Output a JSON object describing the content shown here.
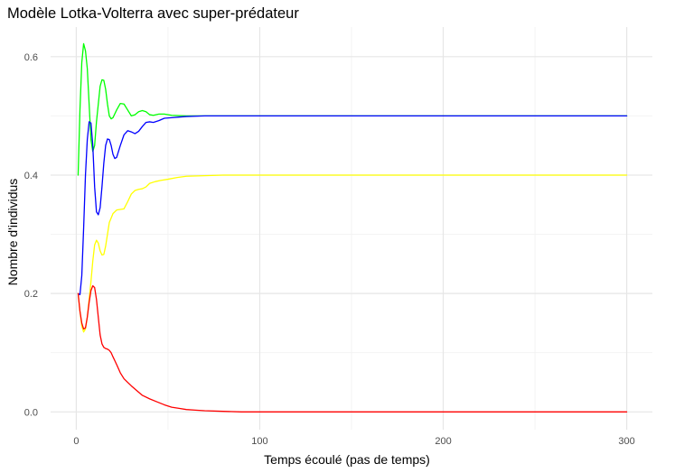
{
  "chart_data": {
    "type": "line",
    "title": "Modèle Lotka-Volterra avec super-prédateur",
    "xlabel": "Temps écoulé (pas de temps)",
    "ylabel": "Nombre d'individus",
    "xlim": [
      -14,
      314
    ],
    "ylim": [
      -0.03,
      0.65
    ],
    "xticks": [
      0,
      100,
      200,
      300
    ],
    "xtick_labels": [
      "0",
      "100",
      "200",
      "300"
    ],
    "x_minor_ticks": [
      50,
      150,
      250
    ],
    "yticks": [
      0.0,
      0.2,
      0.4,
      0.6
    ],
    "ytick_labels": [
      "0.0",
      "0.2",
      "0.4",
      "0.6"
    ],
    "y_minor_ticks": [
      0.1,
      0.3,
      0.5
    ],
    "grid": true,
    "legend": "none",
    "series": [
      {
        "color": "#00ff00",
        "points": [
          [
            1,
            0.4
          ],
          [
            2,
            0.51
          ],
          [
            3,
            0.59
          ],
          [
            4,
            0.622
          ],
          [
            5,
            0.61
          ],
          [
            6,
            0.58
          ],
          [
            7,
            0.52
          ],
          [
            8,
            0.46
          ],
          [
            9,
            0.44
          ],
          [
            10,
            0.45
          ],
          [
            11,
            0.49
          ],
          [
            12,
            0.52
          ],
          [
            13,
            0.55
          ],
          [
            14,
            0.561
          ],
          [
            15,
            0.56
          ],
          [
            16,
            0.545
          ],
          [
            17,
            0.52
          ],
          [
            18,
            0.5
          ],
          [
            19,
            0.495
          ],
          [
            20,
            0.497
          ],
          [
            22,
            0.51
          ],
          [
            24,
            0.521
          ],
          [
            26,
            0.52
          ],
          [
            28,
            0.51
          ],
          [
            30,
            0.5
          ],
          [
            32,
            0.502
          ],
          [
            34,
            0.507
          ],
          [
            36,
            0.509
          ],
          [
            38,
            0.507
          ],
          [
            40,
            0.502
          ],
          [
            42,
            0.501
          ],
          [
            45,
            0.503
          ],
          [
            48,
            0.503
          ],
          [
            52,
            0.501
          ],
          [
            60,
            0.5
          ],
          [
            80,
            0.5
          ],
          [
            100,
            0.5
          ],
          [
            150,
            0.5
          ],
          [
            200,
            0.5
          ],
          [
            250,
            0.5
          ],
          [
            300,
            0.5
          ]
        ]
      },
      {
        "color": "#0000ff",
        "points": [
          [
            1,
            0.2
          ],
          [
            2,
            0.198
          ],
          [
            3,
            0.23
          ],
          [
            4,
            0.31
          ],
          [
            5,
            0.4
          ],
          [
            6,
            0.46
          ],
          [
            7,
            0.49
          ],
          [
            8,
            0.488
          ],
          [
            9,
            0.45
          ],
          [
            10,
            0.38
          ],
          [
            11,
            0.338
          ],
          [
            12,
            0.333
          ],
          [
            13,
            0.345
          ],
          [
            14,
            0.38
          ],
          [
            15,
            0.42
          ],
          [
            16,
            0.45
          ],
          [
            17,
            0.461
          ],
          [
            18,
            0.46
          ],
          [
            19,
            0.45
          ],
          [
            20,
            0.435
          ],
          [
            21,
            0.428
          ],
          [
            22,
            0.43
          ],
          [
            24,
            0.45
          ],
          [
            26,
            0.468
          ],
          [
            28,
            0.475
          ],
          [
            30,
            0.473
          ],
          [
            32,
            0.47
          ],
          [
            34,
            0.474
          ],
          [
            36,
            0.482
          ],
          [
            38,
            0.489
          ],
          [
            40,
            0.49
          ],
          [
            42,
            0.489
          ],
          [
            45,
            0.492
          ],
          [
            48,
            0.496
          ],
          [
            52,
            0.497
          ],
          [
            56,
            0.498
          ],
          [
            60,
            0.499
          ],
          [
            70,
            0.5
          ],
          [
            80,
            0.5
          ],
          [
            100,
            0.5
          ],
          [
            150,
            0.5
          ],
          [
            200,
            0.5
          ],
          [
            250,
            0.5
          ],
          [
            300,
            0.5
          ]
        ]
      },
      {
        "color": "#ffff00",
        "points": [
          [
            1,
            0.2
          ],
          [
            2,
            0.17
          ],
          [
            3,
            0.145
          ],
          [
            4,
            0.135
          ],
          [
            5,
            0.14
          ],
          [
            6,
            0.16
          ],
          [
            7,
            0.19
          ],
          [
            8,
            0.22
          ],
          [
            9,
            0.255
          ],
          [
            10,
            0.282
          ],
          [
            11,
            0.29
          ],
          [
            12,
            0.285
          ],
          [
            13,
            0.272
          ],
          [
            14,
            0.265
          ],
          [
            15,
            0.266
          ],
          [
            16,
            0.28
          ],
          [
            17,
            0.3
          ],
          [
            18,
            0.32
          ],
          [
            20,
            0.335
          ],
          [
            22,
            0.341
          ],
          [
            24,
            0.342
          ],
          [
            26,
            0.343
          ],
          [
            28,
            0.355
          ],
          [
            30,
            0.368
          ],
          [
            32,
            0.374
          ],
          [
            34,
            0.376
          ],
          [
            36,
            0.377
          ],
          [
            38,
            0.38
          ],
          [
            40,
            0.386
          ],
          [
            43,
            0.389
          ],
          [
            46,
            0.391
          ],
          [
            50,
            0.393
          ],
          [
            55,
            0.396
          ],
          [
            60,
            0.398
          ],
          [
            70,
            0.399
          ],
          [
            80,
            0.4
          ],
          [
            100,
            0.4
          ],
          [
            150,
            0.4
          ],
          [
            200,
            0.4
          ],
          [
            250,
            0.4
          ],
          [
            300,
            0.4
          ]
        ]
      },
      {
        "color": "#ff0000",
        "points": [
          [
            1,
            0.2
          ],
          [
            2,
            0.17
          ],
          [
            3,
            0.15
          ],
          [
            4,
            0.14
          ],
          [
            5,
            0.142
          ],
          [
            6,
            0.16
          ],
          [
            7,
            0.185
          ],
          [
            8,
            0.205
          ],
          [
            9,
            0.213
          ],
          [
            10,
            0.21
          ],
          [
            11,
            0.19
          ],
          [
            12,
            0.16
          ],
          [
            13,
            0.13
          ],
          [
            14,
            0.115
          ],
          [
            15,
            0.109
          ],
          [
            16,
            0.107
          ],
          [
            17,
            0.106
          ],
          [
            18,
            0.104
          ],
          [
            19,
            0.1
          ],
          [
            20,
            0.093
          ],
          [
            22,
            0.08
          ],
          [
            24,
            0.066
          ],
          [
            26,
            0.056
          ],
          [
            28,
            0.05
          ],
          [
            30,
            0.044
          ],
          [
            33,
            0.036
          ],
          [
            36,
            0.028
          ],
          [
            40,
            0.022
          ],
          [
            44,
            0.017
          ],
          [
            48,
            0.012
          ],
          [
            52,
            0.008
          ],
          [
            56,
            0.006
          ],
          [
            60,
            0.004
          ],
          [
            65,
            0.003
          ],
          [
            70,
            0.002
          ],
          [
            80,
            0.001
          ],
          [
            90,
            0.0
          ],
          [
            100,
            0.0
          ],
          [
            150,
            0.0
          ],
          [
            200,
            0.0
          ],
          [
            250,
            0.0
          ],
          [
            300,
            0.0
          ]
        ]
      }
    ]
  }
}
